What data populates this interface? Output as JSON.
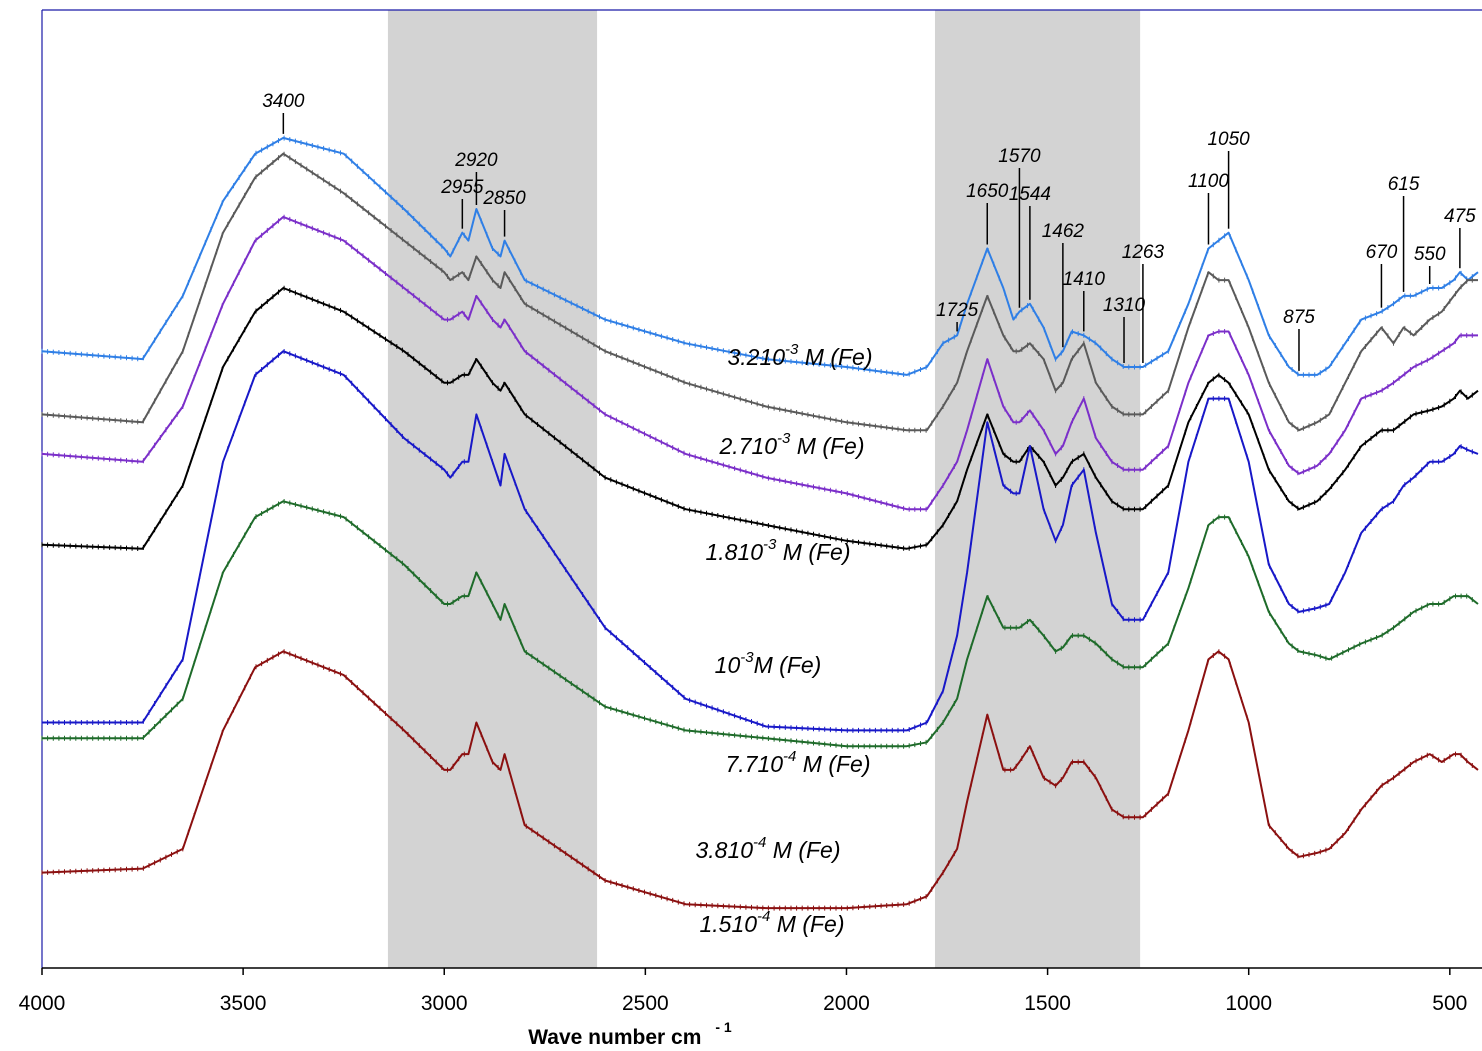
{
  "chart_data": {
    "type": "line",
    "xlabel": "Wave number cm",
    "xlabel_sup": "- 1",
    "xlim": [
      4000,
      420
    ],
    "x_ticks": [
      4000,
      3500,
      3000,
      2500,
      2000,
      1500,
      1000,
      500
    ],
    "x_tick_labels": [
      "4000",
      "3500",
      "3000",
      "2500",
      "2000",
      "1500",
      "1000",
      "500"
    ],
    "y_axis_labels": false,
    "grid": false,
    "shaded_regions": [
      [
        3140,
        2620
      ],
      [
        1780,
        1270
      ]
    ],
    "peak_labels": [
      {
        "x": 3400,
        "text": "3400"
      },
      {
        "x": 2955,
        "text": "2955"
      },
      {
        "x": 2920,
        "text": "2920"
      },
      {
        "x": 2850,
        "text": "2850"
      },
      {
        "x": 1725,
        "text": "1725"
      },
      {
        "x": 1650,
        "text": "1650"
      },
      {
        "x": 1570,
        "text": "1570"
      },
      {
        "x": 1544,
        "text": "1544"
      },
      {
        "x": 1462,
        "text": "1462"
      },
      {
        "x": 1410,
        "text": "1410"
      },
      {
        "x": 1310,
        "text": "1310"
      },
      {
        "x": 1263,
        "text": "1263"
      },
      {
        "x": 1100,
        "text": "1100"
      },
      {
        "x": 1050,
        "text": "1050"
      },
      {
        "x": 875,
        "text": "875"
      },
      {
        "x": 670,
        "text": "670"
      },
      {
        "x": 615,
        "text": "615"
      },
      {
        "x": 550,
        "text": "550"
      },
      {
        "x": 475,
        "text": "475"
      }
    ],
    "series": [
      {
        "name": "3.210-3 M (Fe)",
        "color": "#2f7fe6",
        "label": {
          "coef": "3.210",
          "exp": "-3",
          "unit": " M (Fe)"
        },
        "x": [
          4000,
          3750,
          3650,
          3550,
          3470,
          3400,
          3250,
          3100,
          3000,
          2985,
          2955,
          2940,
          2920,
          2880,
          2860,
          2850,
          2800,
          2600,
          2400,
          2200,
          2000,
          1850,
          1800,
          1760,
          1725,
          1700,
          1650,
          1610,
          1585,
          1570,
          1544,
          1510,
          1480,
          1462,
          1440,
          1410,
          1380,
          1340,
          1310,
          1263,
          1200,
          1150,
          1100,
          1075,
          1050,
          1000,
          950,
          900,
          875,
          830,
          800,
          760,
          720,
          670,
          640,
          615,
          590,
          550,
          520,
          490,
          475,
          455,
          430
        ],
        "y": [
          0.72,
          0.71,
          0.79,
          0.91,
          0.97,
          0.99,
          0.97,
          0.9,
          0.85,
          0.84,
          0.87,
          0.86,
          0.9,
          0.85,
          0.84,
          0.86,
          0.81,
          0.76,
          0.73,
          0.71,
          0.7,
          0.69,
          0.7,
          0.73,
          0.74,
          0.78,
          0.85,
          0.8,
          0.76,
          0.77,
          0.78,
          0.75,
          0.71,
          0.72,
          0.745,
          0.74,
          0.73,
          0.71,
          0.7,
          0.7,
          0.72,
          0.78,
          0.85,
          0.86,
          0.87,
          0.81,
          0.74,
          0.7,
          0.69,
          0.69,
          0.7,
          0.73,
          0.76,
          0.77,
          0.78,
          0.79,
          0.79,
          0.8,
          0.8,
          0.81,
          0.82,
          0.81,
          0.82
        ]
      },
      {
        "name": "2.710-3 M (Fe)",
        "color": "#5a5a5a",
        "label": {
          "coef": "2.710",
          "exp": "-3",
          "unit": " M (Fe)"
        },
        "x": [
          4000,
          3750,
          3650,
          3550,
          3470,
          3400,
          3250,
          3100,
          3000,
          2985,
          2955,
          2940,
          2920,
          2880,
          2860,
          2850,
          2800,
          2600,
          2400,
          2200,
          2000,
          1850,
          1800,
          1760,
          1725,
          1700,
          1650,
          1610,
          1585,
          1570,
          1544,
          1510,
          1480,
          1462,
          1440,
          1410,
          1380,
          1340,
          1310,
          1263,
          1200,
          1150,
          1100,
          1075,
          1050,
          1000,
          950,
          900,
          875,
          830,
          800,
          760,
          720,
          670,
          640,
          615,
          590,
          550,
          520,
          490,
          475,
          455,
          430
        ],
        "y": [
          0.64,
          0.63,
          0.72,
          0.87,
          0.94,
          0.97,
          0.92,
          0.86,
          0.82,
          0.81,
          0.82,
          0.81,
          0.84,
          0.81,
          0.8,
          0.82,
          0.78,
          0.72,
          0.68,
          0.65,
          0.63,
          0.62,
          0.62,
          0.65,
          0.68,
          0.72,
          0.79,
          0.74,
          0.72,
          0.72,
          0.73,
          0.71,
          0.67,
          0.68,
          0.71,
          0.73,
          0.68,
          0.65,
          0.64,
          0.64,
          0.67,
          0.75,
          0.82,
          0.81,
          0.81,
          0.75,
          0.68,
          0.63,
          0.62,
          0.63,
          0.64,
          0.68,
          0.72,
          0.75,
          0.73,
          0.75,
          0.74,
          0.76,
          0.77,
          0.79,
          0.8,
          0.81,
          0.81
        ]
      },
      {
        "name": "1.810-3 M (Fe)",
        "color": "#7b2fc9",
        "label": {
          "coef": "1.810",
          "exp": "-3",
          "unit": " M (Fe)"
        },
        "x": [
          4000,
          3750,
          3650,
          3550,
          3470,
          3400,
          3250,
          3100,
          3000,
          2985,
          2955,
          2940,
          2920,
          2880,
          2860,
          2850,
          2800,
          2600,
          2400,
          2200,
          2000,
          1850,
          1800,
          1760,
          1725,
          1700,
          1650,
          1610,
          1585,
          1570,
          1544,
          1510,
          1480,
          1462,
          1440,
          1410,
          1380,
          1340,
          1310,
          1263,
          1200,
          1150,
          1100,
          1075,
          1050,
          1000,
          950,
          900,
          875,
          830,
          800,
          760,
          720,
          670,
          640,
          615,
          590,
          550,
          520,
          490,
          475,
          455,
          430
        ],
        "y": [
          0.59,
          0.58,
          0.65,
          0.78,
          0.86,
          0.89,
          0.86,
          0.8,
          0.76,
          0.76,
          0.77,
          0.76,
          0.79,
          0.76,
          0.75,
          0.76,
          0.72,
          0.64,
          0.59,
          0.56,
          0.54,
          0.52,
          0.52,
          0.55,
          0.58,
          0.62,
          0.71,
          0.65,
          0.63,
          0.63,
          0.645,
          0.62,
          0.59,
          0.6,
          0.63,
          0.66,
          0.61,
          0.58,
          0.57,
          0.57,
          0.6,
          0.68,
          0.74,
          0.745,
          0.745,
          0.69,
          0.62,
          0.575,
          0.565,
          0.575,
          0.59,
          0.62,
          0.66,
          0.67,
          0.68,
          0.69,
          0.7,
          0.71,
          0.72,
          0.73,
          0.74,
          0.74,
          0.74
        ]
      },
      {
        "name": "10-3 M (Fe)",
        "color": "#000000",
        "label": {
          "coef": "10",
          "exp": "-3",
          "unit": "M (Fe)"
        },
        "x": [
          4000,
          3750,
          3650,
          3550,
          3470,
          3400,
          3250,
          3100,
          3000,
          2985,
          2955,
          2940,
          2920,
          2880,
          2860,
          2850,
          2800,
          2600,
          2400,
          2200,
          2000,
          1850,
          1800,
          1760,
          1725,
          1700,
          1650,
          1610,
          1585,
          1570,
          1544,
          1510,
          1480,
          1462,
          1440,
          1410,
          1380,
          1340,
          1310,
          1263,
          1200,
          1150,
          1100,
          1075,
          1050,
          1000,
          950,
          900,
          875,
          830,
          800,
          760,
          720,
          670,
          640,
          615,
          590,
          550,
          520,
          490,
          475,
          455,
          430
        ],
        "y": [
          0.475,
          0.47,
          0.55,
          0.7,
          0.77,
          0.8,
          0.77,
          0.72,
          0.68,
          0.68,
          0.69,
          0.69,
          0.71,
          0.68,
          0.67,
          0.68,
          0.64,
          0.56,
          0.52,
          0.5,
          0.48,
          0.47,
          0.475,
          0.5,
          0.53,
          0.57,
          0.64,
          0.59,
          0.58,
          0.58,
          0.6,
          0.58,
          0.55,
          0.56,
          0.58,
          0.59,
          0.56,
          0.53,
          0.52,
          0.52,
          0.55,
          0.63,
          0.68,
          0.69,
          0.68,
          0.64,
          0.57,
          0.53,
          0.52,
          0.53,
          0.545,
          0.57,
          0.6,
          0.62,
          0.62,
          0.63,
          0.64,
          0.645,
          0.65,
          0.66,
          0.67,
          0.66,
          0.67
        ]
      },
      {
        "name": "7.710-4 M (Fe)",
        "color": "#1818c8",
        "label": {
          "coef": "7.710",
          "exp": "-4",
          "unit": " M (Fe)"
        },
        "x": [
          4000,
          3750,
          3650,
          3550,
          3470,
          3400,
          3250,
          3100,
          3000,
          2985,
          2955,
          2940,
          2920,
          2880,
          2860,
          2850,
          2800,
          2600,
          2400,
          2200,
          2000,
          1850,
          1800,
          1760,
          1725,
          1700,
          1650,
          1610,
          1585,
          1570,
          1544,
          1510,
          1480,
          1462,
          1440,
          1410,
          1380,
          1340,
          1310,
          1263,
          1200,
          1150,
          1100,
          1075,
          1050,
          1000,
          950,
          900,
          875,
          830,
          800,
          760,
          720,
          670,
          640,
          615,
          590,
          550,
          520,
          490,
          475,
          455,
          430
        ],
        "y": [
          0.25,
          0.25,
          0.33,
          0.58,
          0.69,
          0.72,
          0.69,
          0.61,
          0.57,
          0.56,
          0.58,
          0.58,
          0.64,
          0.58,
          0.55,
          0.59,
          0.52,
          0.37,
          0.28,
          0.245,
          0.24,
          0.24,
          0.25,
          0.29,
          0.36,
          0.44,
          0.63,
          0.55,
          0.54,
          0.54,
          0.6,
          0.52,
          0.48,
          0.5,
          0.55,
          0.57,
          0.49,
          0.4,
          0.38,
          0.38,
          0.44,
          0.58,
          0.66,
          0.66,
          0.66,
          0.58,
          0.45,
          0.4,
          0.39,
          0.395,
          0.4,
          0.44,
          0.49,
          0.52,
          0.53,
          0.55,
          0.56,
          0.58,
          0.58,
          0.59,
          0.6,
          0.595,
          0.59
        ]
      },
      {
        "name": "3.810-4 M (Fe)",
        "color": "#1e6b2a",
        "label": {
          "coef": "3.810",
          "exp": "-4",
          "unit": " M (Fe)"
        },
        "x": [
          4000,
          3750,
          3650,
          3550,
          3470,
          3400,
          3250,
          3100,
          3000,
          2985,
          2955,
          2940,
          2920,
          2880,
          2860,
          2850,
          2800,
          2600,
          2400,
          2200,
          2000,
          1850,
          1800,
          1760,
          1725,
          1700,
          1650,
          1610,
          1585,
          1570,
          1544,
          1510,
          1480,
          1462,
          1440,
          1410,
          1380,
          1340,
          1310,
          1263,
          1200,
          1150,
          1100,
          1075,
          1050,
          1000,
          950,
          900,
          875,
          830,
          800,
          760,
          720,
          670,
          640,
          615,
          590,
          550,
          520,
          490,
          475,
          455,
          430
        ],
        "y": [
          0.23,
          0.23,
          0.28,
          0.44,
          0.51,
          0.53,
          0.51,
          0.45,
          0.4,
          0.4,
          0.41,
          0.41,
          0.44,
          0.4,
          0.38,
          0.4,
          0.34,
          0.27,
          0.24,
          0.23,
          0.22,
          0.22,
          0.225,
          0.25,
          0.28,
          0.33,
          0.41,
          0.37,
          0.37,
          0.37,
          0.38,
          0.36,
          0.34,
          0.345,
          0.36,
          0.36,
          0.35,
          0.33,
          0.32,
          0.32,
          0.35,
          0.42,
          0.5,
          0.51,
          0.51,
          0.46,
          0.39,
          0.35,
          0.34,
          0.335,
          0.33,
          0.34,
          0.35,
          0.36,
          0.37,
          0.38,
          0.39,
          0.4,
          0.4,
          0.41,
          0.41,
          0.41,
          0.4
        ]
      },
      {
        "name": "1.510-4 M (Fe)",
        "color": "#8b1010",
        "label": {
          "coef": "1.510",
          "exp": "-4",
          "unit": " M (Fe)"
        },
        "x": [
          4000,
          3750,
          3650,
          3550,
          3470,
          3400,
          3250,
          3100,
          3000,
          2985,
          2955,
          2940,
          2920,
          2880,
          2860,
          2850,
          2800,
          2600,
          2400,
          2200,
          2000,
          1850,
          1800,
          1760,
          1725,
          1700,
          1650,
          1610,
          1585,
          1570,
          1544,
          1510,
          1480,
          1462,
          1440,
          1410,
          1380,
          1340,
          1310,
          1263,
          1200,
          1150,
          1100,
          1075,
          1050,
          1000,
          950,
          900,
          875,
          830,
          800,
          760,
          720,
          670,
          640,
          615,
          590,
          550,
          520,
          490,
          475,
          455,
          430
        ],
        "y": [
          0.06,
          0.065,
          0.09,
          0.24,
          0.32,
          0.34,
          0.31,
          0.24,
          0.19,
          0.19,
          0.21,
          0.21,
          0.25,
          0.2,
          0.19,
          0.21,
          0.12,
          0.05,
          0.02,
          0.015,
          0.015,
          0.02,
          0.03,
          0.06,
          0.09,
          0.15,
          0.26,
          0.19,
          0.19,
          0.2,
          0.22,
          0.18,
          0.17,
          0.18,
          0.2,
          0.2,
          0.18,
          0.14,
          0.13,
          0.13,
          0.16,
          0.24,
          0.33,
          0.34,
          0.33,
          0.25,
          0.12,
          0.09,
          0.08,
          0.085,
          0.09,
          0.11,
          0.14,
          0.17,
          0.18,
          0.19,
          0.2,
          0.21,
          0.2,
          0.21,
          0.21,
          0.2,
          0.19
        ]
      }
    ]
  }
}
